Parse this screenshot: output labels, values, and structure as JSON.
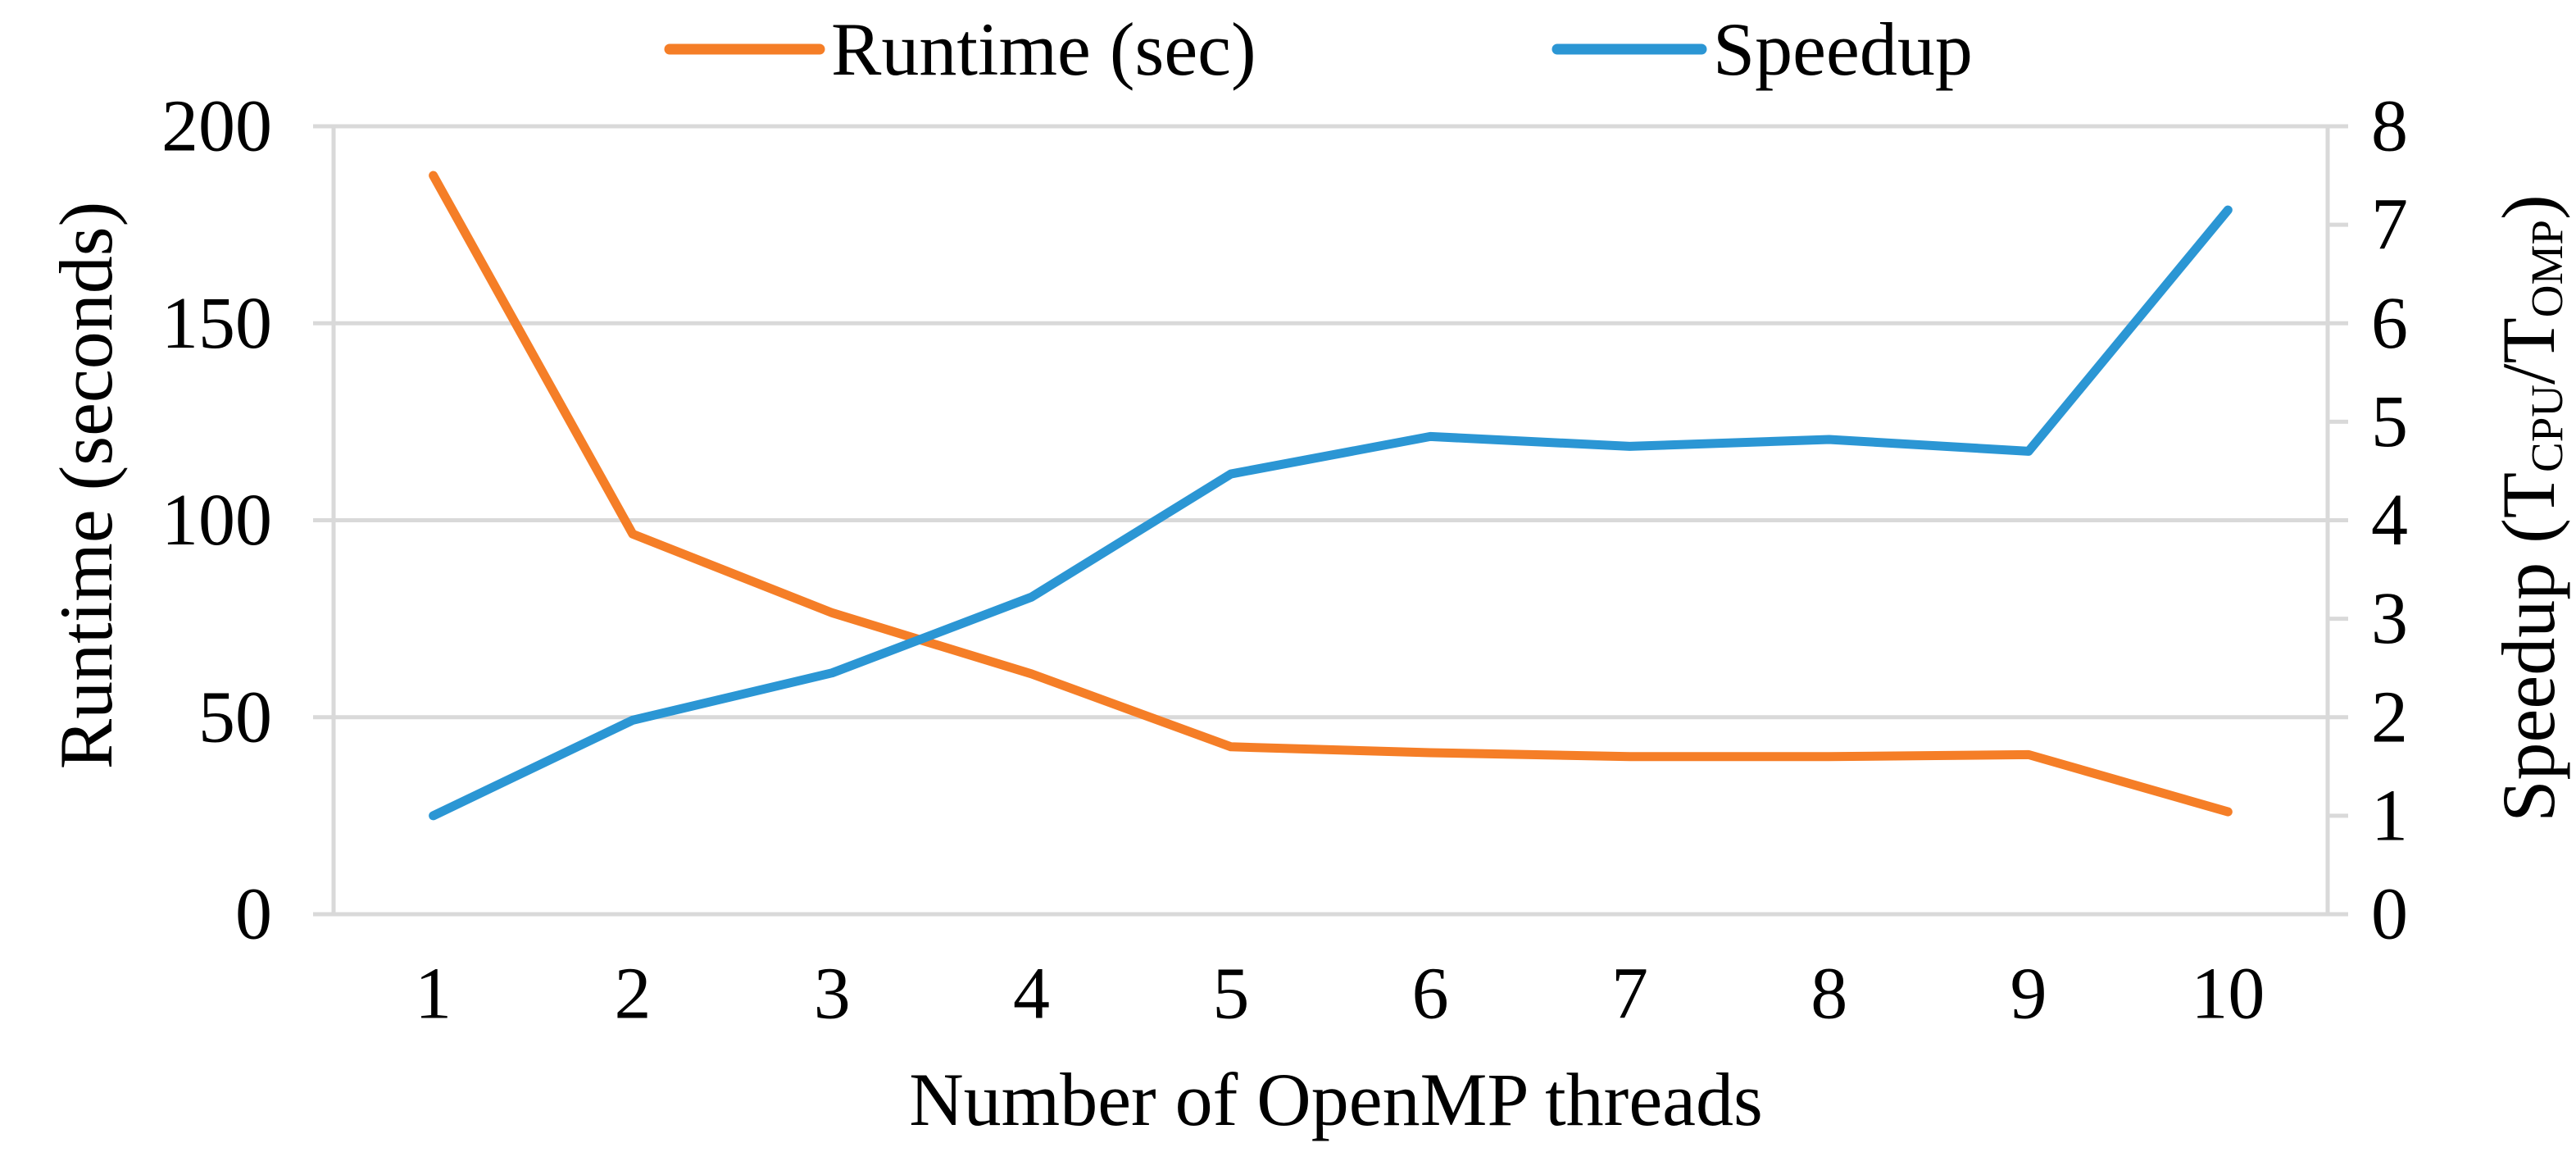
{
  "chart_data": {
    "type": "line",
    "title": "",
    "xlabel": "Number of OpenMP threads",
    "x": [
      1,
      2,
      3,
      4,
      5,
      6,
      7,
      8,
      9,
      10
    ],
    "series": [
      {
        "name": "Runtime (sec)",
        "axis": "left",
        "color": "#F57E27",
        "values": [
          187.5,
          96.5,
          76.5,
          61,
          42.5,
          41,
          40,
          40,
          40.5,
          26
        ]
      },
      {
        "name": "Speedup",
        "axis": "right",
        "color": "#2B96D4",
        "values": [
          1.0,
          1.97,
          2.45,
          3.22,
          4.47,
          4.85,
          4.75,
          4.82,
          4.7,
          7.15
        ]
      }
    ],
    "left_axis": {
      "label": "Runtime (seconds)",
      "ticks": [
        0,
        50,
        100,
        150,
        200
      ],
      "range": [
        0,
        200
      ]
    },
    "right_axis": {
      "label_parts": {
        "prefix": "Speedup (T",
        "sub1": "CPU",
        "mid": "/T",
        "sub2": "OMP",
        "suffix": ")"
      },
      "ticks": [
        0,
        1,
        2,
        3,
        4,
        5,
        6,
        7,
        8
      ],
      "range": [
        0,
        8
      ]
    },
    "grid": true,
    "legend_position": "top",
    "colors": {
      "grid": "#D9D9D9",
      "axis_line": "#D9D9D9",
      "text": "#000000",
      "background": "#FFFFFF"
    }
  },
  "legend": {
    "items": [
      {
        "label": "Runtime (sec)",
        "color": "#F57E27"
      },
      {
        "label": "Speedup",
        "color": "#2B96D4"
      }
    ]
  }
}
